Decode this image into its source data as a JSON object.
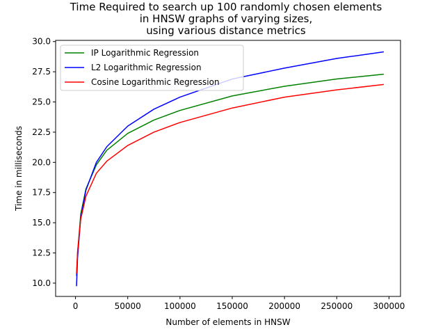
{
  "chart_data": {
    "type": "line",
    "title_lines": [
      "Time Required to search up 100 randomly chosen elements",
      "in HNSW graphs of varying sizes,",
      "using various distance metrics"
    ],
    "xlabel": "Number of elements in HNSW",
    "ylabel": "Time in milliseconds",
    "xlim": [
      -19000,
      311000
    ],
    "ylim": [
      8.9,
      30.1
    ],
    "xticks": [
      0,
      50000,
      100000,
      150000,
      200000,
      250000,
      300000
    ],
    "xtick_labels": [
      "0",
      "50000",
      "100000",
      "150000",
      "200000",
      "250000",
      "300000"
    ],
    "yticks": [
      10.0,
      12.5,
      15.0,
      17.5,
      20.0,
      22.5,
      25.0,
      27.5,
      30.0
    ],
    "ytick_labels": [
      "10.0",
      "12.5",
      "15.0",
      "17.5",
      "20.0",
      "22.5",
      "25.0",
      "27.5",
      "30.0"
    ],
    "legend_position": "top-left",
    "series": [
      {
        "name": "IP Logarithmic Regression",
        "color": "#008000",
        "x": [
          1000,
          2000,
          5000,
          10000,
          20000,
          30000,
          50000,
          75000,
          100000,
          150000,
          200000,
          250000,
          295000
        ],
        "y": [
          10.6,
          12.5,
          15.7,
          17.8,
          19.8,
          21.0,
          22.4,
          23.5,
          24.3,
          25.5,
          26.3,
          26.9,
          27.3
        ]
      },
      {
        "name": "L2 Logarithmic Regression",
        "color": "#0000ff",
        "x": [
          1000,
          2000,
          5000,
          10000,
          20000,
          30000,
          50000,
          75000,
          100000,
          150000,
          200000,
          250000,
          295000
        ],
        "y": [
          9.75,
          12.1,
          15.4,
          17.7,
          20.0,
          21.3,
          23.0,
          24.4,
          25.4,
          26.9,
          27.8,
          28.6,
          29.15
        ]
      },
      {
        "name": "Cosine Logarithmic Regression",
        "color": "#ff0000",
        "x": [
          1000,
          2000,
          5000,
          10000,
          20000,
          30000,
          50000,
          75000,
          100000,
          150000,
          200000,
          250000,
          295000
        ],
        "y": [
          10.8,
          12.6,
          15.3,
          17.2,
          19.1,
          20.1,
          21.4,
          22.5,
          23.3,
          24.5,
          25.4,
          26.0,
          26.45
        ]
      }
    ]
  }
}
